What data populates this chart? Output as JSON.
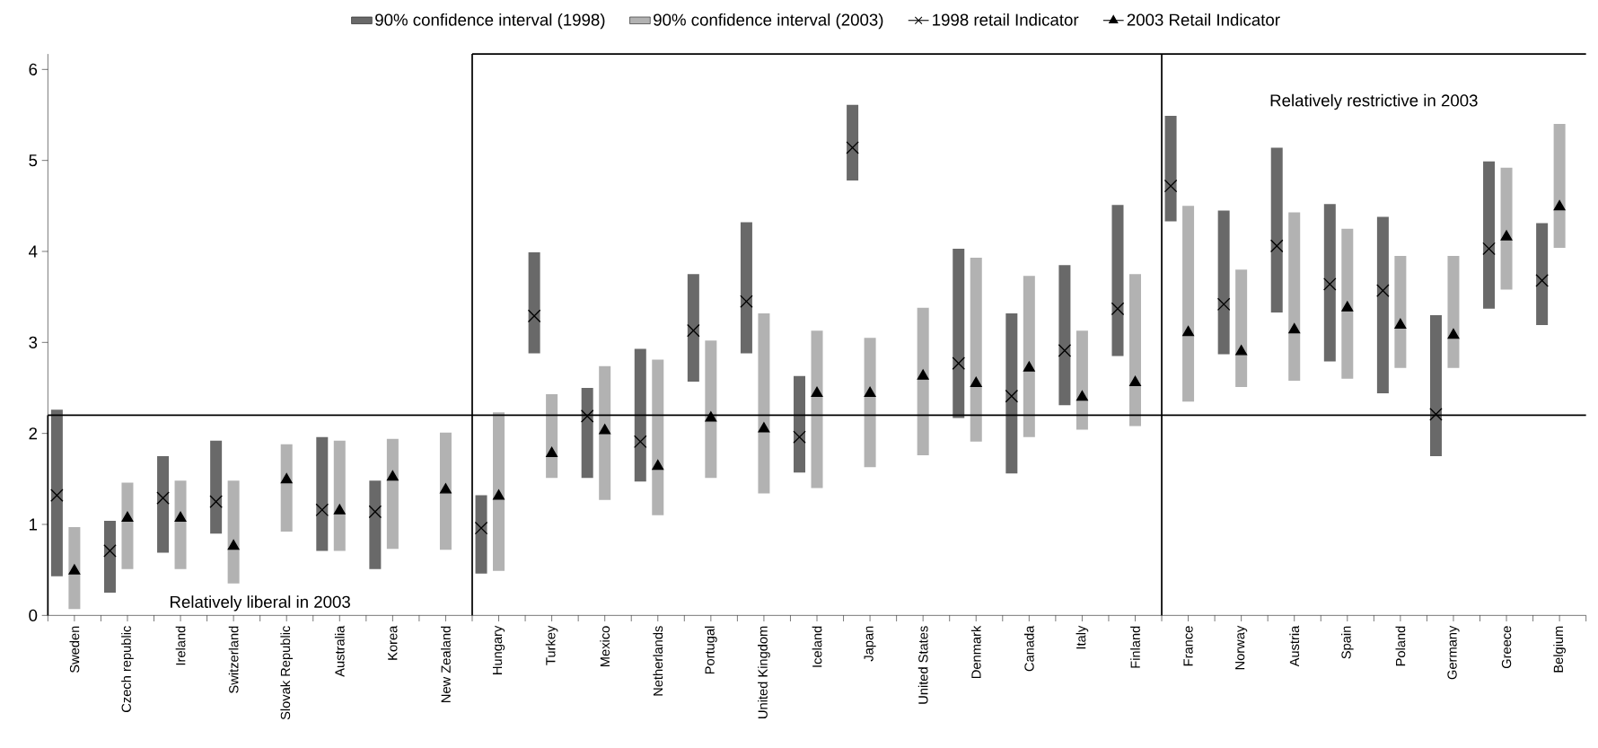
{
  "chart_data": {
    "type": "bar",
    "categories": [
      "Sweden",
      "Czech republic",
      "Ireland",
      "Switzerland",
      "Slovak Republic",
      "Australia",
      "Korea",
      "New Zealand",
      "Hungary",
      "Turkey",
      "Mexico",
      "Netherlands",
      "Portugal",
      "United Kingdom",
      "Iceland",
      "Japan",
      "United States",
      "Denmark",
      "Canada",
      "Italy",
      "Finland",
      "France",
      "Norway",
      "Austria",
      "Spain",
      "Poland",
      "Germany",
      "Greece",
      "Belgium"
    ],
    "series": [
      {
        "name": "90% confidence interval (1998)",
        "color": "#696969",
        "base": [
          0.43,
          0.25,
          0.69,
          0.9,
          null,
          0.71,
          0.51,
          null,
          0.46,
          2.88,
          1.51,
          1.47,
          2.57,
          2.88,
          1.57,
          4.78,
          null,
          2.17,
          1.56,
          2.31,
          2.85,
          4.33,
          2.87,
          3.33,
          2.79,
          2.44,
          1.75,
          3.37,
          3.19
        ],
        "values": [
          1.83,
          0.79,
          1.06,
          1.02,
          null,
          1.25,
          0.97,
          null,
          0.86,
          1.11,
          0.99,
          1.46,
          1.18,
          1.44,
          1.06,
          0.83,
          null,
          1.86,
          1.76,
          1.54,
          1.66,
          1.16,
          1.58,
          1.81,
          1.73,
          1.94,
          1.55,
          1.62,
          1.12
        ]
      },
      {
        "name": "90% confidence interval (2003)",
        "color": "#b2b2b2",
        "base": [
          0.07,
          0.51,
          0.51,
          0.35,
          0.92,
          0.71,
          0.73,
          0.72,
          0.49,
          1.51,
          1.27,
          1.1,
          1.51,
          1.34,
          1.4,
          1.63,
          1.76,
          1.91,
          1.96,
          2.04,
          2.08,
          2.35,
          2.51,
          2.58,
          2.6,
          2.72,
          2.72,
          3.58,
          4.04
        ],
        "values": [
          0.9,
          0.95,
          0.97,
          1.13,
          0.96,
          1.21,
          1.21,
          1.29,
          1.74,
          0.92,
          1.47,
          1.71,
          1.51,
          1.98,
          1.73,
          1.42,
          1.62,
          2.02,
          1.77,
          1.09,
          1.67,
          2.15,
          1.29,
          1.85,
          1.65,
          1.23,
          1.23,
          1.34,
          1.36
        ]
      },
      {
        "name": "1998 retail Indicator",
        "type": "scatter",
        "marker": "cross",
        "color": "#000000",
        "values": [
          1.32,
          0.71,
          1.29,
          1.25,
          null,
          1.16,
          1.14,
          null,
          0.96,
          3.29,
          2.19,
          1.91,
          3.13,
          3.45,
          1.96,
          5.14,
          null,
          2.77,
          2.41,
          2.91,
          3.37,
          4.72,
          3.42,
          4.06,
          3.64,
          3.57,
          2.21,
          4.03,
          3.68
        ]
      },
      {
        "name": "2003 Retail Indicator",
        "type": "scatter",
        "marker": "triangle",
        "color": "#000000",
        "values": [
          0.49,
          1.07,
          1.07,
          0.76,
          1.49,
          1.15,
          1.52,
          1.38,
          1.31,
          1.78,
          2.03,
          1.64,
          2.17,
          2.05,
          2.44,
          2.44,
          2.63,
          2.55,
          2.72,
          2.4,
          2.56,
          3.11,
          2.9,
          3.14,
          3.38,
          3.19,
          3.08,
          4.16,
          4.49
        ]
      }
    ],
    "ylim": [
      0,
      6.17
    ],
    "yticks": [
      0,
      1,
      2,
      3,
      4,
      5,
      6
    ],
    "ref_lines": [
      {
        "axis": "y",
        "value": 2.2
      }
    ],
    "annotations": [
      "Relatively liberal in 2003",
      "Relatively restrictive in 2003"
    ],
    "legend": "top",
    "grid": false
  }
}
